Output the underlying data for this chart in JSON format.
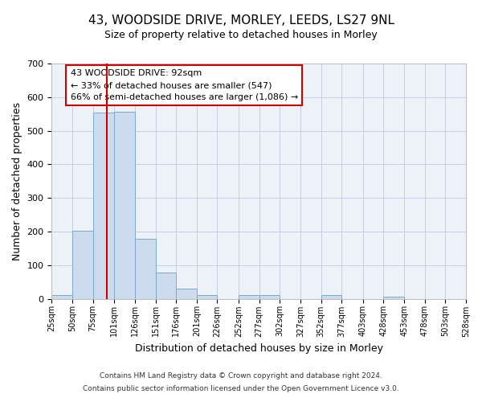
{
  "title_line1": "43, WOODSIDE DRIVE, MORLEY, LEEDS, LS27 9NL",
  "title_line2": "Size of property relative to detached houses in Morley",
  "xlabel": "Distribution of detached houses by size in Morley",
  "ylabel": "Number of detached properties",
  "bar_color": "#ccdcee",
  "bar_edge_color": "#7aaacb",
  "background_color": "#ffffff",
  "plot_bg_color": "#edf2f9",
  "grid_color": "#c5cfe0",
  "bin_edges": [
    25,
    50,
    75,
    101,
    126,
    151,
    176,
    201,
    226,
    252,
    277,
    302,
    327,
    352,
    377,
    403,
    428,
    453,
    478,
    503,
    528
  ],
  "bin_labels": [
    "25sqm",
    "50sqm",
    "75sqm",
    "101sqm",
    "126sqm",
    "151sqm",
    "176sqm",
    "201sqm",
    "226sqm",
    "252sqm",
    "277sqm",
    "302sqm",
    "327sqm",
    "352sqm",
    "377sqm",
    "403sqm",
    "428sqm",
    "453sqm",
    "478sqm",
    "503sqm",
    "528sqm"
  ],
  "counts": [
    12,
    203,
    553,
    557,
    178,
    78,
    30,
    10,
    0,
    10,
    10,
    0,
    0,
    10,
    0,
    0,
    5,
    0,
    0,
    0
  ],
  "property_size": 92,
  "vline_color": "#cc0000",
  "annotation_line1": "43 WOODSIDE DRIVE: 92sqm",
  "annotation_line2": "← 33% of detached houses are smaller (547)",
  "annotation_line3": "66% of semi-detached houses are larger (1,086) →",
  "annotation_box_color": "#ffffff",
  "annotation_box_edge_color": "#cc0000",
  "ylim": [
    0,
    700
  ],
  "yticks": [
    0,
    100,
    200,
    300,
    400,
    500,
    600,
    700
  ],
  "footer_line1": "Contains HM Land Registry data © Crown copyright and database right 2024.",
  "footer_line2": "Contains public sector information licensed under the Open Government Licence v3.0."
}
